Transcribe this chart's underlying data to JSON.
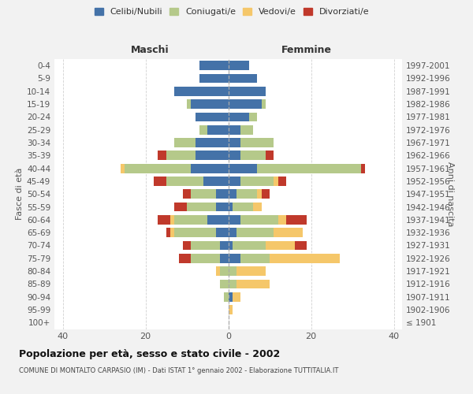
{
  "age_groups": [
    "100+",
    "95-99",
    "90-94",
    "85-89",
    "80-84",
    "75-79",
    "70-74",
    "65-69",
    "60-64",
    "55-59",
    "50-54",
    "45-49",
    "40-44",
    "35-39",
    "30-34",
    "25-29",
    "20-24",
    "15-19",
    "10-14",
    "5-9",
    "0-4"
  ],
  "birth_years": [
    "≤ 1901",
    "1902-1906",
    "1907-1911",
    "1912-1916",
    "1917-1921",
    "1922-1926",
    "1927-1931",
    "1932-1936",
    "1937-1941",
    "1942-1946",
    "1947-1951",
    "1952-1956",
    "1957-1961",
    "1962-1966",
    "1967-1971",
    "1972-1976",
    "1977-1981",
    "1982-1986",
    "1987-1991",
    "1992-1996",
    "1997-2001"
  ],
  "maschi": {
    "celibi": [
      0,
      0,
      0,
      0,
      0,
      2,
      2,
      3,
      5,
      3,
      3,
      6,
      9,
      8,
      8,
      5,
      8,
      9,
      13,
      7,
      7
    ],
    "coniugati": [
      0,
      0,
      1,
      2,
      2,
      7,
      7,
      10,
      8,
      7,
      6,
      9,
      16,
      7,
      5,
      2,
      0,
      1,
      0,
      0,
      0
    ],
    "vedovi": [
      0,
      0,
      0,
      0,
      1,
      0,
      0,
      1,
      1,
      0,
      0,
      0,
      1,
      0,
      0,
      0,
      0,
      0,
      0,
      0,
      0
    ],
    "divorziati": [
      0,
      0,
      0,
      0,
      0,
      3,
      2,
      1,
      3,
      3,
      2,
      3,
      0,
      2,
      0,
      0,
      0,
      0,
      0,
      0,
      0
    ]
  },
  "femmine": {
    "nubili": [
      0,
      0,
      1,
      0,
      0,
      3,
      1,
      2,
      3,
      1,
      2,
      3,
      7,
      3,
      3,
      3,
      5,
      8,
      9,
      7,
      5
    ],
    "coniugate": [
      0,
      0,
      0,
      2,
      2,
      7,
      8,
      9,
      9,
      5,
      5,
      8,
      25,
      6,
      8,
      3,
      2,
      1,
      0,
      0,
      0
    ],
    "vedove": [
      0,
      1,
      2,
      8,
      7,
      17,
      7,
      7,
      2,
      2,
      1,
      1,
      0,
      0,
      0,
      0,
      0,
      0,
      0,
      0,
      0
    ],
    "divorziate": [
      0,
      0,
      0,
      0,
      0,
      0,
      3,
      0,
      5,
      0,
      2,
      2,
      1,
      2,
      0,
      0,
      0,
      0,
      0,
      0,
      0
    ]
  },
  "colors": {
    "celibi": "#4472a8",
    "coniugati": "#b5c98a",
    "vedovi": "#f5c76a",
    "divorziati": "#c0392b"
  },
  "xlim": 42,
  "title": "Popolazione per età, sesso e stato civile - 2002",
  "subtitle": "COMUNE DI MONTALTO CARPASIO (IM) - Dati ISTAT 1° gennaio 2002 - Elaborazione TUTTITALIA.IT",
  "ylabel_left": "Fasce di età",
  "ylabel_right": "Anni di nascita",
  "xlabel_left": "Maschi",
  "xlabel_right": "Femmine",
  "bg_color": "#f2f2f2",
  "plot_bg": "#ffffff"
}
